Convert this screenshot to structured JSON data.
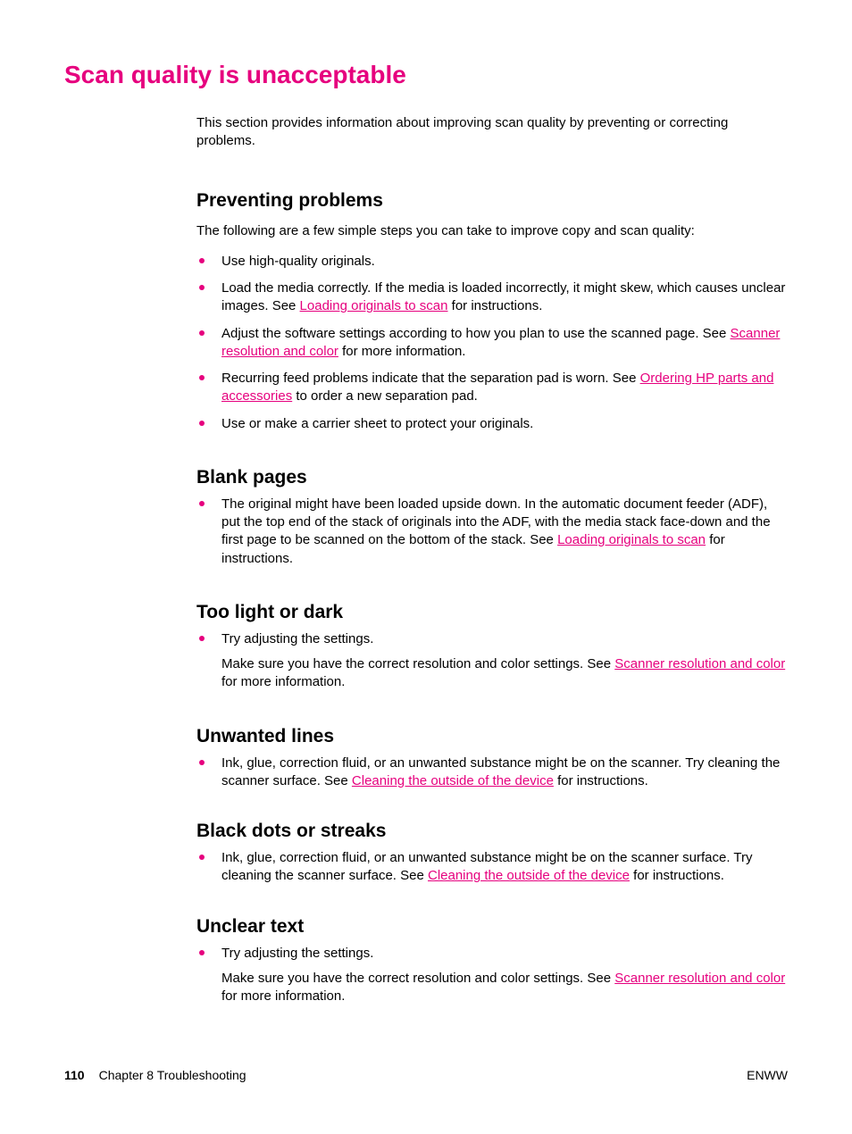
{
  "colors": {
    "accent": "#e6007e",
    "text": "#000000",
    "background": "#ffffff"
  },
  "title": "Scan quality is unacceptable",
  "intro": "This section provides information about improving scan quality by preventing or correcting problems.",
  "sections": {
    "preventing": {
      "heading": "Preventing problems",
      "lead": "The following are a few simple steps you can take to improve copy and scan quality:",
      "items": {
        "0": {
          "text": "Use high-quality originals."
        },
        "1": {
          "pre": "Load the media correctly. If the media is loaded incorrectly, it might skew, which causes unclear images. See ",
          "link": "Loading originals to scan",
          "post": " for instructions."
        },
        "2": {
          "pre": "Adjust the software settings according to how you plan to use the scanned page. See ",
          "link": "Scanner resolution and color",
          "post": " for more information."
        },
        "3": {
          "pre": "Recurring feed problems indicate that the separation pad is worn. See ",
          "link": "Ordering HP parts and accessories",
          "post": " to order a new separation pad."
        },
        "4": {
          "text": "Use or make a carrier sheet to protect your originals."
        }
      }
    },
    "blank": {
      "heading": "Blank pages",
      "item": {
        "pre": "The original might have been loaded upside down. In the automatic document feeder (ADF), put the top end of the stack of originals into the ADF, with the media stack face-down and the first page to be scanned on the bottom of the stack. See ",
        "link": "Loading originals to scan",
        "post": " for instructions."
      }
    },
    "light": {
      "heading": "Too light or dark",
      "item": {
        "text": "Try adjusting the settings."
      },
      "para": {
        "pre": "Make sure you have the correct resolution and color settings. See ",
        "link": "Scanner resolution and color",
        "post": " for more information."
      }
    },
    "unwanted": {
      "heading": "Unwanted lines",
      "item": {
        "pre": "Ink, glue, correction fluid, or an unwanted substance might be on the scanner. Try cleaning the scanner surface. See ",
        "link": "Cleaning the outside of the device",
        "post": " for instructions."
      }
    },
    "dots": {
      "heading": "Black dots or streaks",
      "item": {
        "pre": "Ink, glue, correction fluid, or an unwanted substance might be on the scanner surface. Try cleaning the scanner surface. See ",
        "link": "Cleaning the outside of the device",
        "post": " for instructions."
      }
    },
    "unclear": {
      "heading": "Unclear text",
      "item": {
        "text": "Try adjusting the settings."
      },
      "para": {
        "pre": "Make sure you have the correct resolution and color settings. See ",
        "link": "Scanner resolution and color",
        "post": " for more information."
      }
    }
  },
  "footer": {
    "page": "110",
    "chapter": "Chapter 8  Troubleshooting",
    "right": "ENWW"
  }
}
